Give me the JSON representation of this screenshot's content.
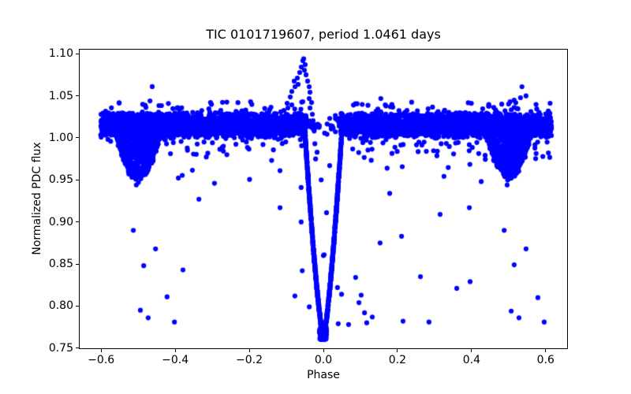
{
  "chart_data": {
    "type": "scatter",
    "title": "TIC 0101719607, period 1.0461 days",
    "xlabel": "Phase",
    "ylabel": "Normalized PDC flux",
    "xlim": [
      -0.66,
      0.66
    ],
    "ylim": [
      0.7488,
      1.1059
    ],
    "xticks": [
      -0.6,
      -0.4,
      -0.2,
      0.0,
      0.2,
      0.4,
      0.6
    ],
    "yticks": [
      0.75,
      0.8,
      0.85,
      0.9,
      0.95,
      1.0,
      1.05,
      1.1
    ],
    "grid": false,
    "legend": "none",
    "marker": {
      "color": "#0000ff",
      "radius_px": 3.1,
      "style": "dot"
    },
    "seed": 987654321,
    "phase_range": [
      -0.601,
      0.616
    ],
    "description": "Phase-folded eclipsing-binary light curve: dense out-of-eclipse band near flux 1.015, deep V-shaped primary eclipse at phase 0 reaching flux 0.762, shallow secondary eclipses at phase ±0.5 reaching ~0.956, a flare-like brightening peaking at phase ≈ -0.053 with flux ≈ 1.094, and scattered faint outliers down to flux ≈ 0.78.",
    "components": {
      "band": {
        "n": 5000,
        "flux_center": 1.015,
        "half_spread": 0.016,
        "eclipse_gap_halfwidth": 0.046,
        "eclipse_gap_keep_fraction": 0.08,
        "extra_fuzz_fraction": 0.1,
        "extra_fuzz": 0.012
      },
      "band_fringe_above": {
        "n": 65,
        "flux_min": 1.03,
        "flux_max": 1.043
      },
      "band_fringe_below": {
        "n": 95,
        "flux_min": 0.973,
        "flux_max": 0.998
      },
      "mid_scatter": {
        "n": 10,
        "flux_min": 0.95,
        "flux_max": 0.973
      },
      "primary_eclipse": {
        "center_phase": 0.0,
        "half_width_phase": 0.05,
        "min_flux": 0.762,
        "shoulder_flux": 1.008,
        "wall_exponent": 1.35,
        "wall_points": 950,
        "wall_noise": 0.0025,
        "bottom_points": 170,
        "bottom_half_width_phase": 0.011,
        "bottom_flux_spread": 0.015
      },
      "secondary_eclipses": {
        "center_phases": [
          -0.5,
          0.5
        ],
        "half_width_phase": 0.063,
        "depth_flux": 0.058,
        "top_flux": 1.01,
        "points_each": 650,
        "noise": 0.006,
        "fill_bias_exponent": 0.6
      }
    },
    "flare_points": [
      [
        -0.115,
        1.031
      ],
      [
        -0.1065,
        1.0328
      ],
      [
        -0.0979,
        1.0412
      ],
      [
        -0.0958,
        1.0356
      ],
      [
        -0.0894,
        1.0487
      ],
      [
        -0.0852,
        1.0553
      ],
      [
        -0.0852,
        1.0393
      ],
      [
        -0.0788,
        1.0675
      ],
      [
        -0.0766,
        1.0609
      ],
      [
        -0.0703,
        1.0712
      ],
      [
        -0.0681,
        1.0637
      ],
      [
        -0.0639,
        1.0778
      ],
      [
        -0.0596,
        1.0843
      ],
      [
        -0.0554,
        1.0918
      ],
      [
        -0.0532,
        1.094
      ],
      [
        -0.0511,
        1.0806
      ],
      [
        -0.049,
        1.0871
      ],
      [
        -0.0468,
        1.075
      ],
      [
        -0.0426,
        1.0675
      ],
      [
        -0.0383,
        1.0609
      ],
      [
        -0.0383,
        1.0468
      ],
      [
        -0.0362,
        1.0543
      ],
      [
        -0.0362,
        1.0356
      ],
      [
        -0.0319,
        1.0421
      ],
      [
        -0.0298,
        1.0281
      ],
      [
        -0.0277,
        1.0206
      ]
    ],
    "high_points": [
      [
        -0.468,
        1.044
      ],
      [
        -0.462,
        1.061
      ],
      [
        -0.444,
        1.0384
      ],
      [
        -0.437,
        1.0384
      ],
      [
        0.155,
        1.0468
      ],
      [
        0.43,
        1.0346
      ],
      [
        0.5,
        1.0403
      ],
      [
        0.515,
        1.045
      ],
      [
        0.522,
        1.035
      ],
      [
        0.532,
        1.0478
      ],
      [
        0.536,
        1.0609
      ],
      [
        0.547,
        1.05
      ]
    ],
    "outlier_points": [
      [
        -0.513,
        0.89
      ],
      [
        -0.505,
        0.944
      ],
      [
        -0.494,
        0.795
      ],
      [
        -0.485,
        0.848
      ],
      [
        -0.473,
        0.786
      ],
      [
        -0.453,
        0.868
      ],
      [
        -0.422,
        0.811
      ],
      [
        -0.402,
        0.781
      ],
      [
        -0.379,
        0.843
      ],
      [
        -0.336,
        0.927
      ],
      [
        -0.294,
        0.946
      ],
      [
        -0.117,
        0.917
      ],
      [
        -0.077,
        0.812
      ],
      [
        -0.06,
        0.941
      ],
      [
        -0.06,
        0.9
      ],
      [
        -0.057,
        0.842
      ],
      [
        -0.038,
        0.799
      ],
      [
        0.0,
        0.86
      ],
      [
        0.038,
        0.822
      ],
      [
        0.04,
        0.779
      ],
      [
        0.049,
        0.814
      ],
      [
        0.068,
        0.778
      ],
      [
        0.087,
        0.834
      ],
      [
        0.096,
        0.804
      ],
      [
        0.102,
        0.813
      ],
      [
        0.111,
        0.792
      ],
      [
        0.117,
        0.78
      ],
      [
        0.132,
        0.787
      ],
      [
        0.153,
        0.875
      ],
      [
        0.179,
        0.934
      ],
      [
        0.211,
        0.883
      ],
      [
        0.215,
        0.782
      ],
      [
        0.262,
        0.835
      ],
      [
        0.285,
        0.781
      ],
      [
        0.315,
        0.909
      ],
      [
        0.36,
        0.821
      ],
      [
        0.394,
        0.917
      ],
      [
        0.396,
        0.829
      ],
      [
        0.426,
        0.948
      ],
      [
        0.488,
        0.89
      ],
      [
        0.496,
        0.944
      ],
      [
        0.507,
        0.794
      ],
      [
        0.515,
        0.849
      ],
      [
        0.528,
        0.786
      ],
      [
        0.547,
        0.868
      ],
      [
        0.579,
        0.81
      ],
      [
        0.596,
        0.781
      ]
    ],
    "eclipse_interior_points": [
      [
        -0.023,
        0.993
      ],
      [
        -0.017,
        0.983
      ],
      [
        -0.021,
        0.975
      ],
      [
        0.017,
        0.967
      ],
      [
        -0.006,
        0.95
      ],
      [
        0.0085,
        0.911
      ],
      [
        0.002,
        0.861
      ]
    ]
  }
}
